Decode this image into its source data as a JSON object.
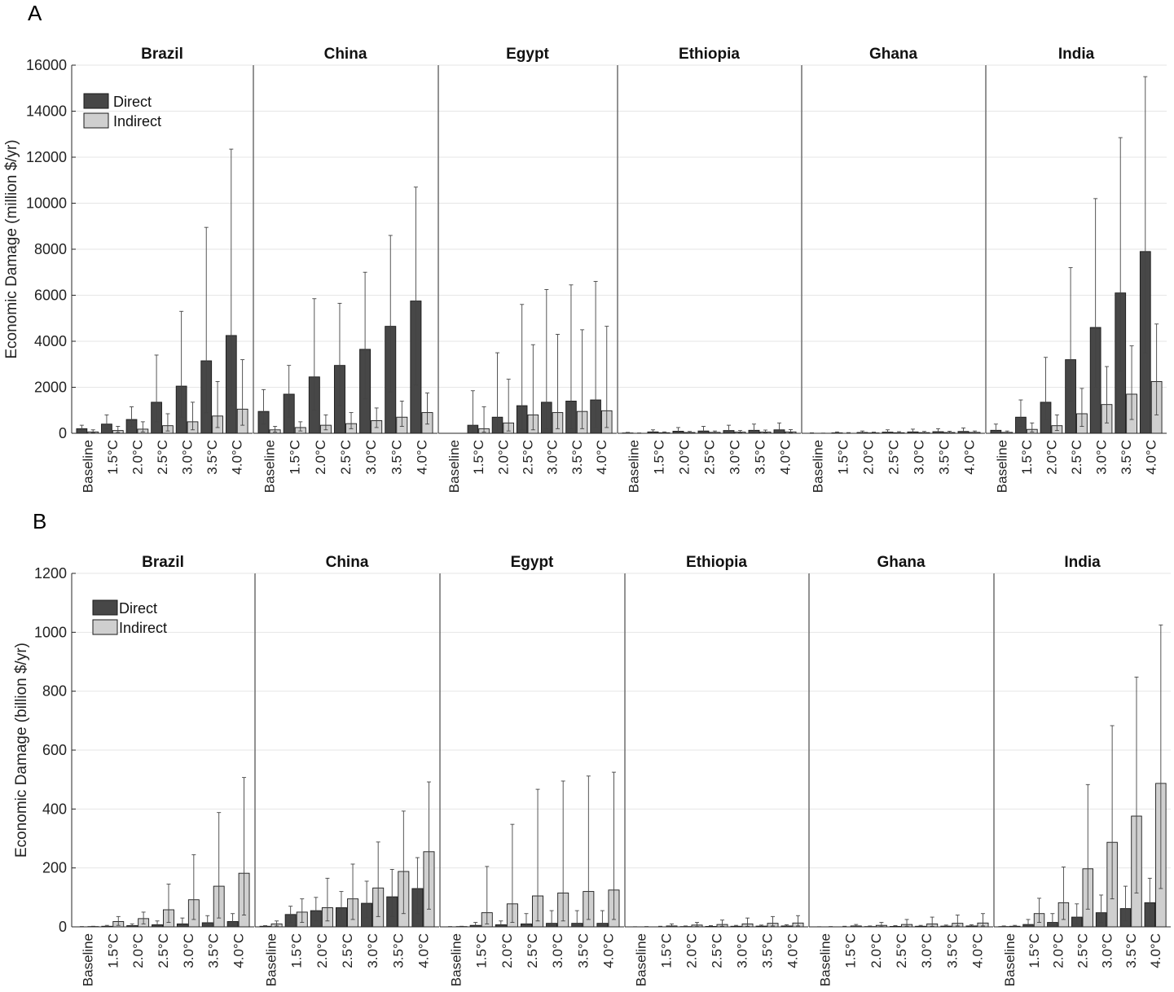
{
  "figure": {
    "panel_a_label": "A",
    "panel_b_label": "B"
  },
  "chart_data": [
    {
      "panel": "A",
      "type": "bar",
      "ylabel": "Economic Damage (million $/yr)",
      "ylim": [
        0,
        16000
      ],
      "yticks": [
        0,
        2000,
        4000,
        6000,
        8000,
        10000,
        12000,
        14000,
        16000
      ],
      "grid": true,
      "legend": {
        "position": "top-left",
        "entries": [
          "Direct",
          "Indirect"
        ]
      },
      "colors": {
        "Direct": "#474747",
        "Indirect": "#cfcfcf"
      },
      "categories": [
        "Baseline",
        "1.5°C",
        "2.0°C",
        "2.5°C",
        "3.0°C",
        "3.5°C",
        "4.0°C"
      ],
      "subplots": [
        {
          "title": "Brazil",
          "direct": [
            200,
            400,
            600,
            1350,
            2050,
            3150,
            4250
          ],
          "direct_err": [
            [
              100,
              350
            ],
            [
              200,
              800
            ],
            [
              300,
              1150
            ],
            [
              500,
              3400
            ],
            [
              700,
              5300
            ],
            [
              900,
              8950
            ],
            [
              1200,
              12350
            ]
          ],
          "indirect": [
            60,
            120,
            180,
            330,
            500,
            750,
            1050
          ],
          "indirect_err": [
            [
              20,
              150
            ],
            [
              40,
              300
            ],
            [
              60,
              500
            ],
            [
              100,
              850
            ],
            [
              150,
              1350
            ],
            [
              250,
              2250
            ],
            [
              350,
              3200
            ]
          ]
        },
        {
          "title": "China",
          "direct": [
            950,
            1700,
            2450,
            2950,
            3650,
            4650,
            5750
          ],
          "direct_err": [
            [
              400,
              1900
            ],
            [
              700,
              2950
            ],
            [
              1000,
              5850
            ],
            [
              1200,
              5650
            ],
            [
              1500,
              7000
            ],
            [
              1800,
              8600
            ],
            [
              2100,
              10700
            ]
          ],
          "indirect": [
            150,
            250,
            350,
            420,
            550,
            700,
            900
          ],
          "indirect_err": [
            [
              50,
              300
            ],
            [
              100,
              500
            ],
            [
              150,
              800
            ],
            [
              200,
              900
            ],
            [
              250,
              1100
            ],
            [
              300,
              1400
            ],
            [
              400,
              1750
            ]
          ]
        },
        {
          "title": "Egypt",
          "direct": [
            0,
            350,
            700,
            1200,
            1350,
            1400,
            1450
          ],
          "direct_err": [
            [
              0,
              0
            ],
            [
              50,
              1850
            ],
            [
              100,
              3500
            ],
            [
              150,
              5600
            ],
            [
              200,
              6250
            ],
            [
              200,
              6450
            ],
            [
              250,
              6600
            ]
          ],
          "indirect": [
            0,
            200,
            450,
            800,
            900,
            950,
            980
          ],
          "indirect_err": [
            [
              0,
              0
            ],
            [
              50,
              1150
            ],
            [
              100,
              2350
            ],
            [
              150,
              3850
            ],
            [
              200,
              4300
            ],
            [
              200,
              4500
            ],
            [
              250,
              4650
            ]
          ]
        },
        {
          "title": "Ethiopia",
          "direct": [
            15,
            60,
            90,
            100,
            120,
            130,
            150
          ],
          "direct_err": [
            [
              0,
              40
            ],
            [
              20,
              150
            ],
            [
              30,
              250
            ],
            [
              30,
              300
            ],
            [
              40,
              350
            ],
            [
              40,
              400
            ],
            [
              50,
              450
            ]
          ],
          "indirect": [
            5,
            25,
            35,
            40,
            50,
            55,
            60
          ],
          "indirect_err": [
            [
              0,
              15
            ],
            [
              10,
              60
            ],
            [
              10,
              80
            ],
            [
              10,
              100
            ],
            [
              15,
              120
            ],
            [
              15,
              140
            ],
            [
              20,
              160
            ]
          ]
        },
        {
          "title": "Ghana",
          "direct": [
            5,
            20,
            35,
            50,
            60,
            70,
            80
          ],
          "direct_err": [
            [
              0,
              20
            ],
            [
              5,
              60
            ],
            [
              10,
              100
            ],
            [
              15,
              150
            ],
            [
              20,
              180
            ],
            [
              20,
              200
            ],
            [
              25,
              230
            ]
          ],
          "indirect": [
            3,
            10,
            18,
            25,
            30,
            35,
            40
          ],
          "indirect_err": [
            [
              0,
              8
            ],
            [
              3,
              30
            ],
            [
              5,
              50
            ],
            [
              8,
              70
            ],
            [
              10,
              80
            ],
            [
              10,
              90
            ],
            [
              12,
              100
            ]
          ]
        },
        {
          "title": "India",
          "direct": [
            130,
            700,
            1350,
            3200,
            4600,
            6100,
            7900
          ],
          "direct_err": [
            [
              50,
              400
            ],
            [
              300,
              1450
            ],
            [
              600,
              3300
            ],
            [
              1400,
              7200
            ],
            [
              2000,
              10200
            ],
            [
              2700,
              12850
            ],
            [
              3500,
              15500
            ]
          ],
          "indirect": [
            40,
            170,
            330,
            850,
            1250,
            1700,
            2250
          ],
          "indirect_err": [
            [
              10,
              100
            ],
            [
              60,
              450
            ],
            [
              120,
              800
            ],
            [
              300,
              1950
            ],
            [
              450,
              2900
            ],
            [
              600,
              3800
            ],
            [
              800,
              4750
            ]
          ]
        }
      ]
    },
    {
      "panel": "B",
      "type": "bar",
      "ylabel": "Economic Damage (billion $/yr)",
      "ylim": [
        0,
        1200
      ],
      "yticks": [
        0,
        200,
        400,
        600,
        800,
        1000,
        1200
      ],
      "grid": true,
      "legend": {
        "position": "top-left",
        "entries": [
          "Direct",
          "Indirect"
        ]
      },
      "colors": {
        "Direct": "#474747",
        "Indirect": "#cfcfcf"
      },
      "categories": [
        "Baseline",
        "1.5°C",
        "2.0°C",
        "2.5°C",
        "3.0°C",
        "3.5°C",
        "4.0°C"
      ],
      "subplots": [
        {
          "title": "Brazil",
          "direct": [
            0.5,
            2,
            4,
            7,
            10,
            14,
            18
          ],
          "direct_err": [
            [
              0,
              1
            ],
            [
              1,
              5
            ],
            [
              1,
              10
            ],
            [
              2,
              20
            ],
            [
              3,
              30
            ],
            [
              4,
              38
            ],
            [
              5,
              45
            ]
          ],
          "indirect": [
            1,
            18,
            28,
            58,
            92,
            138,
            182
          ],
          "indirect_err": [
            [
              0,
              2
            ],
            [
              5,
              35
            ],
            [
              10,
              50
            ],
            [
              15,
              145
            ],
            [
              25,
              245
            ],
            [
              30,
              388
            ],
            [
              40,
              507
            ]
          ]
        },
        {
          "title": "China",
          "direct": [
            2,
            42,
            55,
            65,
            80,
            102,
            130
          ],
          "direct_err": [
            [
              1,
              4
            ],
            [
              15,
              70
            ],
            [
              20,
              100
            ],
            [
              25,
              120
            ],
            [
              30,
              155
            ],
            [
              35,
              195
            ],
            [
              45,
              235
            ]
          ],
          "indirect": [
            10,
            50,
            65,
            95,
            132,
            188,
            255
          ],
          "indirect_err": [
            [
              3,
              20
            ],
            [
              15,
              95
            ],
            [
              20,
              165
            ],
            [
              25,
              213
            ],
            [
              35,
              288
            ],
            [
              45,
              393
            ],
            [
              60,
              492
            ]
          ]
        },
        {
          "title": "Egypt",
          "direct": [
            0.5,
            5,
            7,
            10,
            12,
            12,
            12
          ],
          "direct_err": [
            [
              0,
              1
            ],
            [
              1,
              15
            ],
            [
              2,
              20
            ],
            [
              3,
              45
            ],
            [
              3,
              55
            ],
            [
              4,
              55
            ],
            [
              4,
              55
            ]
          ],
          "indirect": [
            1,
            48,
            78,
            105,
            115,
            120,
            125
          ],
          "indirect_err": [
            [
              0,
              2
            ],
            [
              10,
              205
            ],
            [
              15,
              348
            ],
            [
              20,
              467
            ],
            [
              20,
              495
            ],
            [
              25,
              512
            ],
            [
              25,
              525
            ]
          ]
        },
        {
          "title": "Ethiopia",
          "direct": [
            0.2,
            0.5,
            1,
            1.5,
            2,
            2.5,
            3
          ],
          "direct_err": [
            [
              0,
              0.5
            ],
            [
              0,
              2
            ],
            [
              0,
              3
            ],
            [
              0,
              4
            ],
            [
              0,
              5
            ],
            [
              0,
              6
            ],
            [
              0,
              7
            ]
          ],
          "indirect": [
            0.5,
            3,
            6,
            8,
            10,
            12,
            13
          ],
          "indirect_err": [
            [
              0,
              1
            ],
            [
              1,
              10
            ],
            [
              1,
              15
            ],
            [
              2,
              23
            ],
            [
              2,
              30
            ],
            [
              3,
              35
            ],
            [
              3,
              38
            ]
          ]
        },
        {
          "title": "Ghana",
          "direct": [
            0.2,
            0.5,
            1,
            1.5,
            2,
            2.5,
            3
          ],
          "direct_err": [
            [
              0,
              0.5
            ],
            [
              0,
              2
            ],
            [
              0,
              3
            ],
            [
              0,
              4
            ],
            [
              0,
              5
            ],
            [
              0,
              6
            ],
            [
              0,
              7
            ]
          ],
          "indirect": [
            0.5,
            3,
            5,
            8,
            10,
            12,
            13
          ],
          "indirect_err": [
            [
              0,
              1
            ],
            [
              1,
              8
            ],
            [
              1,
              15
            ],
            [
              2,
              25
            ],
            [
              2,
              33
            ],
            [
              3,
              40
            ],
            [
              3,
              45
            ]
          ]
        },
        {
          "title": "India",
          "direct": [
            1,
            8,
            15,
            33,
            48,
            62,
            82
          ],
          "direct_err": [
            [
              0,
              3
            ],
            [
              3,
              25
            ],
            [
              5,
              45
            ],
            [
              10,
              78
            ],
            [
              15,
              108
            ],
            [
              20,
              138
            ],
            [
              25,
              165
            ]
          ],
          "indirect": [
            2,
            45,
            82,
            197,
            287,
            376,
            487
          ],
          "indirect_err": [
            [
              1,
              5
            ],
            [
              15,
              97
            ],
            [
              25,
              203
            ],
            [
              60,
              483
            ],
            [
              95,
              683
            ],
            [
              115,
              848
            ],
            [
              130,
              1025
            ]
          ]
        }
      ]
    }
  ]
}
